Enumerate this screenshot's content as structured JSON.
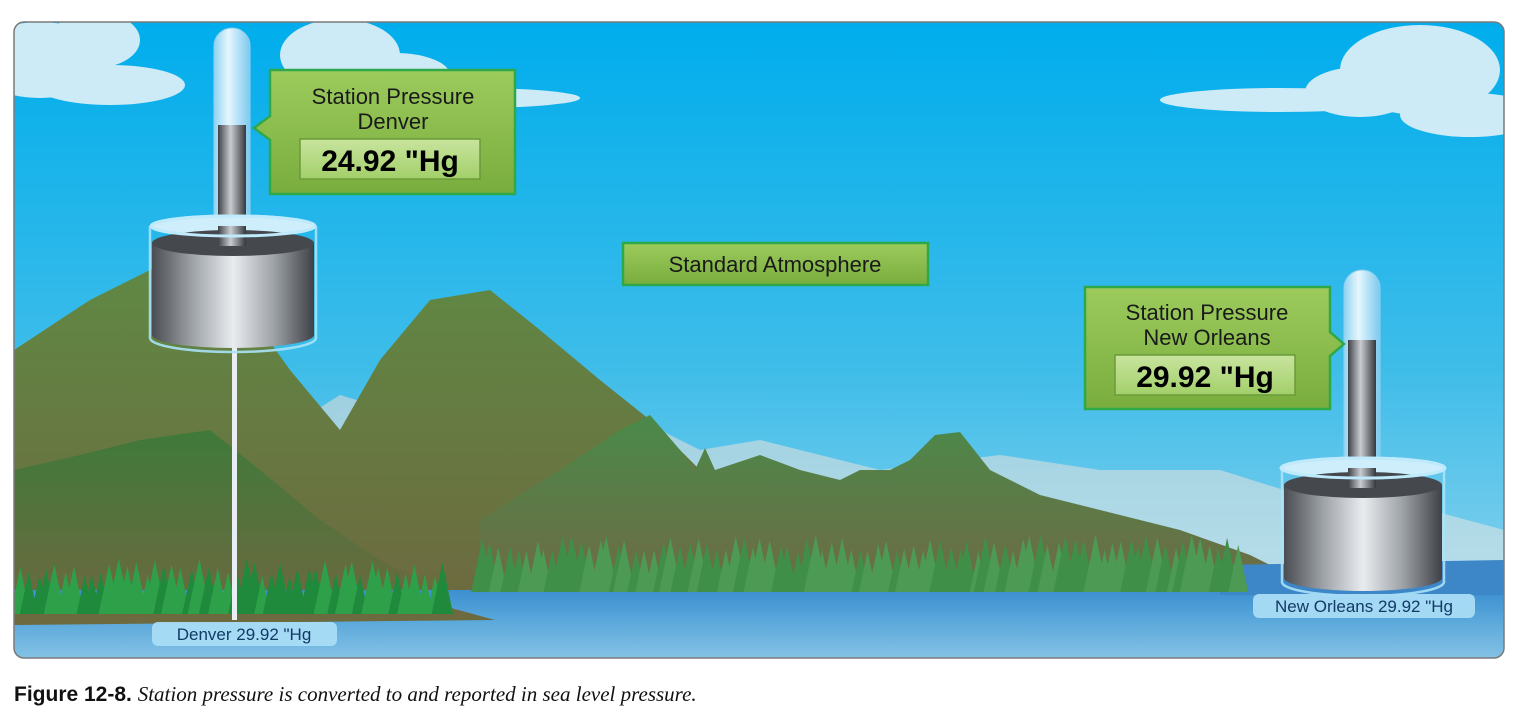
{
  "denver": {
    "callout_line1": "Station Pressure",
    "callout_line2": "Denver",
    "value": "24.92 \"Hg",
    "sea_level_label": "Denver 29.92 \"Hg"
  },
  "standard_atmosphere": {
    "label": "Standard Atmosphere"
  },
  "new_orleans": {
    "callout_line1": "Station Pressure",
    "callout_line2": "New Orleans",
    "value": "29.92 \"Hg",
    "sea_level_label": "New Orleans 29.92 \"Hg"
  },
  "caption": {
    "figure_number": "Figure 12-8.",
    "text": "Station pressure is converted to and reported in sea level pressure."
  },
  "colors": {
    "sky_top": "#00aeef",
    "sky_bottom": "#7fd0f0",
    "mountain": "#5c7a3e",
    "callout_fill": "#8cc152",
    "callout_border": "#3aa34a",
    "water": "#2f8fd0"
  }
}
